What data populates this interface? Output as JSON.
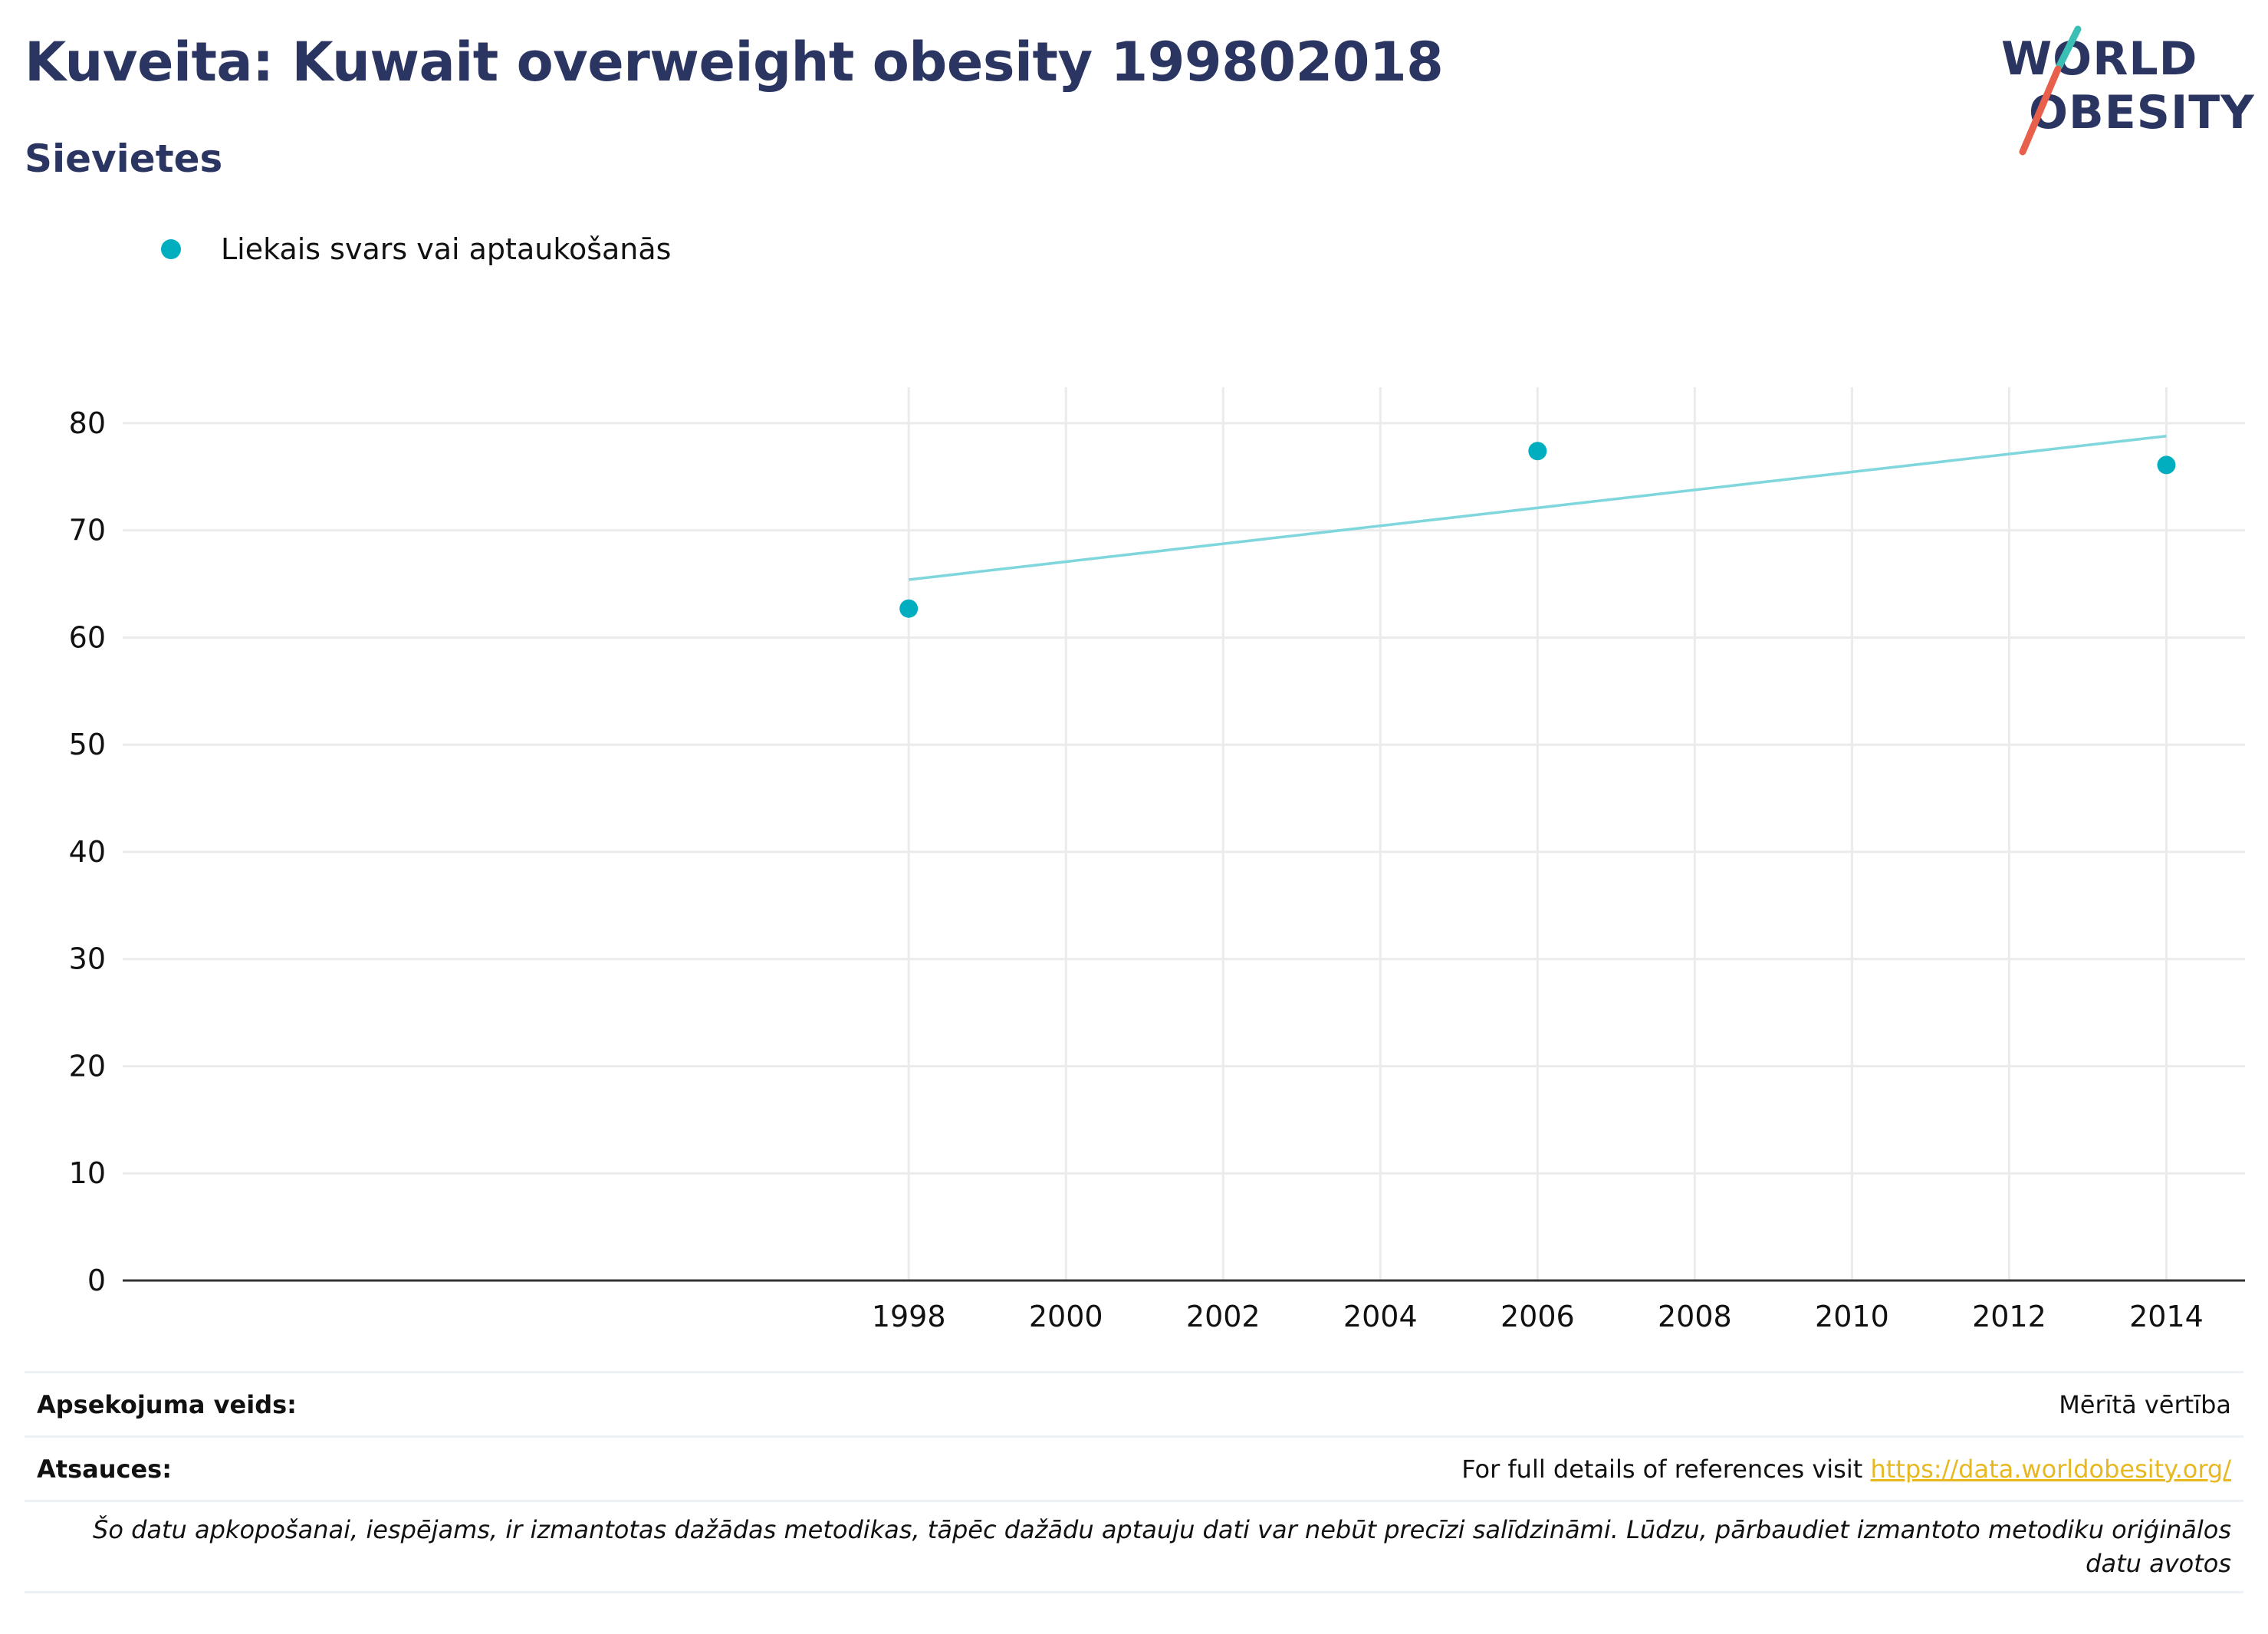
{
  "header": {
    "title": "Kuveita: Kuwait overweight obesity 199802018",
    "subtitle": "Sievietes"
  },
  "logo": {
    "line1": "WORLD",
    "line2": "OBESITY",
    "colors": {
      "text": "#2b3561",
      "teal_slash": "#3bbfb5",
      "red_slash": "#e8604c"
    }
  },
  "legend": {
    "label": "Liekais svars vai aptaukošanās",
    "color": "#00aec0"
  },
  "chart_data": {
    "type": "scatter",
    "title": "",
    "xlabel": "",
    "ylabel": "",
    "x_ticks": [
      1998,
      2000,
      2002,
      2004,
      2006,
      2008,
      2010,
      2012,
      2014
    ],
    "y_ticks": [
      0,
      10,
      20,
      30,
      40,
      50,
      60,
      70,
      80
    ],
    "xlim": [
      1988,
      2015
    ],
    "ylim": [
      0,
      83
    ],
    "grid": true,
    "legend_position": "top-left",
    "series": [
      {
        "name": "Liekais svars vai aptaukošanās",
        "color": "#00aec0",
        "points": [
          {
            "x": 1998,
            "y": 62.7
          },
          {
            "x": 2006,
            "y": 77.4
          },
          {
            "x": 2014,
            "y": 76.1
          }
        ]
      }
    ],
    "trendline": {
      "color": "#7fd6dc",
      "points": [
        {
          "x": 1998,
          "y": 65.4
        },
        {
          "x": 2014,
          "y": 78.8
        }
      ]
    }
  },
  "info": {
    "survey_label": "Apsekojuma veids:",
    "survey_value": "Mērītā vērtība",
    "references_label": "Atsauces:",
    "references_text": "For full details of references visit ",
    "references_link": "https://data.worldobesity.org/",
    "note": "Šo datu apkopošanai, iespējams, ir izmantotas dažādas metodikas, tāpēc dažādu aptauju dati var nebūt precīzi salīdzināmi. Lūdzu, pārbaudiet izmantoto metodiku oriģinālos datu avotos"
  }
}
